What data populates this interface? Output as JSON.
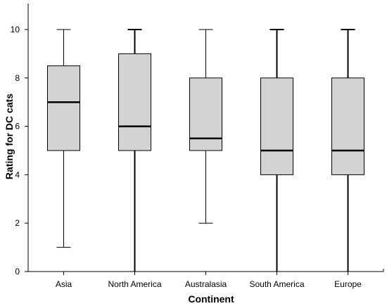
{
  "chart_data": {
    "type": "box",
    "xlabel": "Continent",
    "ylabel": "Rating for DC cats",
    "ylim": [
      0,
      11
    ],
    "yticks": [
      0,
      2,
      4,
      6,
      8,
      10
    ],
    "grid": false,
    "legend": "none",
    "box_fill": "#d3d3d3",
    "categories": [
      "Asia",
      "North America",
      "Australasia",
      "South America",
      "Europe"
    ],
    "boxes": [
      {
        "category": "Asia",
        "min": 1,
        "q1": 5,
        "median": 7,
        "q3": 8.5,
        "max": 10
      },
      {
        "category": "North America",
        "min": 0,
        "q1": 5,
        "median": 6,
        "q3": 9,
        "max": 10
      },
      {
        "category": "Australasia",
        "min": 2,
        "q1": 5,
        "median": 5.5,
        "q3": 8,
        "max": 10
      },
      {
        "category": "South America",
        "min": 0,
        "q1": 4,
        "median": 5,
        "q3": 8,
        "max": 10
      },
      {
        "category": "Europe",
        "min": 0,
        "q1": 4,
        "median": 5,
        "q3": 8,
        "max": 10
      }
    ]
  }
}
